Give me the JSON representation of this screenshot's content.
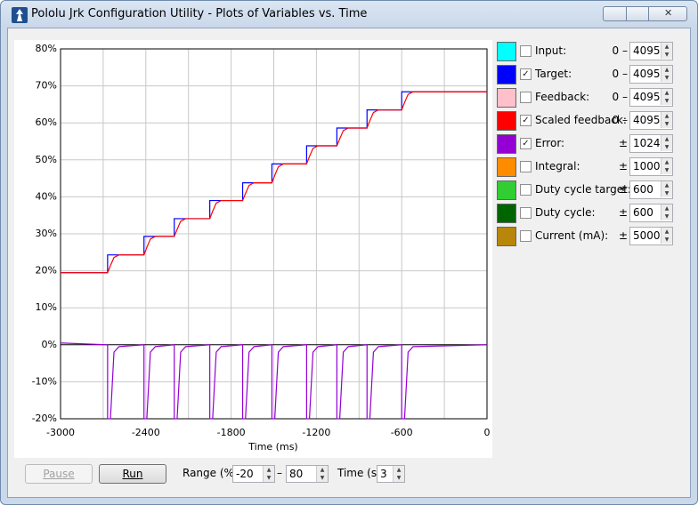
{
  "window": {
    "title": "Pololu Jrk Configuration Utility - Plots of Variables vs. Time"
  },
  "chart_data": {
    "type": "line",
    "x_label": "Time (ms)",
    "xlim": [
      -3000,
      0
    ],
    "xticks": [
      -3000,
      -2400,
      -1800,
      -1200,
      -600,
      0
    ],
    "x_minor_grid": [
      -2700,
      -2100,
      -1500,
      -900,
      -300
    ],
    "ylim": [
      -20,
      80
    ],
    "yticks": [
      {
        "value": -20,
        "label": "-20%"
      },
      {
        "value": -10,
        "label": "-10%"
      },
      {
        "value": 0,
        "label": "0%"
      },
      {
        "value": 10,
        "label": "10%"
      },
      {
        "value": 20,
        "label": "20%"
      },
      {
        "value": 30,
        "label": "30%"
      },
      {
        "value": 40,
        "label": "40%"
      },
      {
        "value": 50,
        "label": "50%"
      },
      {
        "value": 60,
        "label": "60%"
      },
      {
        "value": 70,
        "label": "70%"
      },
      {
        "value": 80,
        "label": "80%"
      }
    ],
    "grid": true,
    "x": [
      -3000,
      -2669,
      -2669,
      -2649,
      -2624,
      -2589,
      -2413,
      -2413,
      -2393,
      -2368,
      -2333,
      -2200,
      -2200,
      -2180,
      -2155,
      -2120,
      -1950,
      -1950,
      -1930,
      -1905,
      -1870,
      -1719,
      -1719,
      -1699,
      -1674,
      -1639,
      -1513,
      -1513,
      -1493,
      -1468,
      -1433,
      -1269,
      -1269,
      -1249,
      -1224,
      -1189,
      -1056,
      -1056,
      -1036,
      -1011,
      -976,
      -844,
      -844,
      -824,
      -799,
      -764,
      -600,
      -600,
      -580,
      -555,
      -520,
      0
    ],
    "series": [
      {
        "color": "#0000ff",
        "values": [
          19.5,
          19.5,
          24.3,
          24.3,
          24.3,
          24.3,
          24.3,
          29.3,
          29.3,
          29.3,
          29.3,
          29.3,
          34.1,
          34.1,
          34.1,
          34.1,
          34.1,
          39.0,
          39.0,
          39.0,
          39.0,
          39.0,
          43.8,
          43.8,
          43.8,
          43.8,
          43.8,
          48.9,
          48.9,
          48.9,
          48.9,
          48.9,
          53.8,
          53.8,
          53.8,
          53.8,
          53.8,
          58.6,
          58.6,
          58.6,
          58.6,
          58.6,
          63.5,
          63.5,
          63.5,
          63.5,
          63.5,
          68.4,
          68.4,
          68.4,
          68.4,
          68.4
        ]
      },
      {
        "color": "#ff0000",
        "values": [
          19.5,
          19.5,
          19.5,
          21.4,
          23.6,
          24.3,
          24.3,
          24.3,
          26.3,
          28.6,
          29.3,
          29.3,
          29.3,
          31.2,
          33.4,
          34.1,
          34.1,
          34.1,
          36.1,
          38.3,
          39.0,
          39.0,
          39.0,
          40.9,
          43.1,
          43.8,
          43.8,
          43.8,
          45.8,
          48.1,
          48.9,
          48.9,
          48.9,
          50.9,
          53.1,
          53.8,
          53.8,
          53.8,
          55.7,
          57.9,
          58.6,
          58.6,
          58.6,
          60.6,
          62.8,
          63.5,
          63.5,
          63.5,
          65.5,
          67.7,
          68.4,
          68.4
        ]
      },
      {
        "color": "#9400d3",
        "values": [
          0.5,
          0,
          -20,
          -20,
          -2,
          -0.5,
          0,
          -20,
          -20,
          -2,
          -0.5,
          0,
          -20,
          -20,
          -2,
          -0.5,
          0,
          -20,
          -20,
          -2,
          -0.5,
          0,
          -20,
          -20,
          -2,
          -0.5,
          0,
          -20,
          -20,
          -2,
          -0.5,
          0,
          -20,
          -20,
          -2,
          -0.5,
          0,
          -20,
          -20,
          -2,
          -0.5,
          0,
          -20,
          -20,
          -2,
          -0.5,
          0,
          -20,
          -20,
          -2,
          -0.5,
          0
        ]
      }
    ]
  },
  "variables": [
    {
      "name": "Input:",
      "color": "#00ffff",
      "checked": false,
      "prefix": "0 –",
      "max": 4095
    },
    {
      "name": "Target:",
      "color": "#0000ff",
      "checked": true,
      "prefix": "0 –",
      "max": 4095
    },
    {
      "name": "Feedback:",
      "color": "#ffc0cb",
      "checked": false,
      "prefix": "0 –",
      "max": 4095
    },
    {
      "name": "Scaled feedback:",
      "color": "#ff0000",
      "checked": true,
      "prefix": "0 –",
      "max": 4095
    },
    {
      "name": "Error:",
      "color": "#9400d3",
      "checked": true,
      "prefix": "±",
      "max": 1024
    },
    {
      "name": "Integral:",
      "color": "#ff8c00",
      "checked": false,
      "prefix": "±",
      "max": 1000
    },
    {
      "name": "Duty cycle target:",
      "color": "#32cd32",
      "checked": false,
      "prefix": "±",
      "max": 600
    },
    {
      "name": "Duty cycle:",
      "color": "#006400",
      "checked": false,
      "prefix": "±",
      "max": 600
    },
    {
      "name": "Current (mA):",
      "color": "#b8860b",
      "checked": false,
      "prefix": "±",
      "max": 5000
    }
  ],
  "controls": {
    "pause": "Pause",
    "run": "Run",
    "range_label": "Range (%):",
    "range_min": -20,
    "range_sep": "–",
    "range_max": 80,
    "time_label": "Time (s):",
    "time": 3
  }
}
